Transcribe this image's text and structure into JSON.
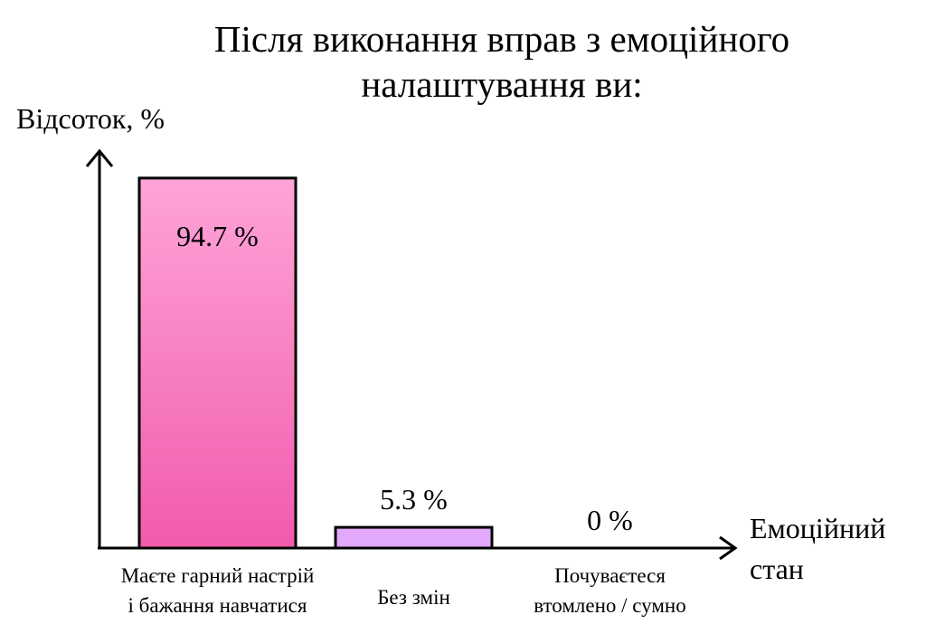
{
  "chart_data": {
    "type": "bar",
    "title_lines": [
      "Після виконання вправ з емоційного",
      "налаштування ви:"
    ],
    "ylabel": "Відсоток, %",
    "xlabel_lines": [
      "Емоційний",
      "стан"
    ],
    "categories": [
      [
        "Маєте гарний настрій",
        "і бажання навчатися"
      ],
      [
        "Без змін"
      ],
      [
        "Почуваєтеся",
        "втомлено / сумно"
      ]
    ],
    "values": [
      94.7,
      5.3,
      0
    ],
    "value_labels": [
      "94.7 %",
      "5.3 %",
      "0 %"
    ],
    "ylim": [
      0,
      100
    ],
    "grid": false,
    "bar_colors": [
      {
        "top": "#fea4d8",
        "bottom": "#f15bab"
      },
      {
        "top": "#e2a8fb",
        "bottom": "#e2a8fb"
      },
      {
        "top": "#ffffff",
        "bottom": "#ffffff"
      }
    ]
  }
}
